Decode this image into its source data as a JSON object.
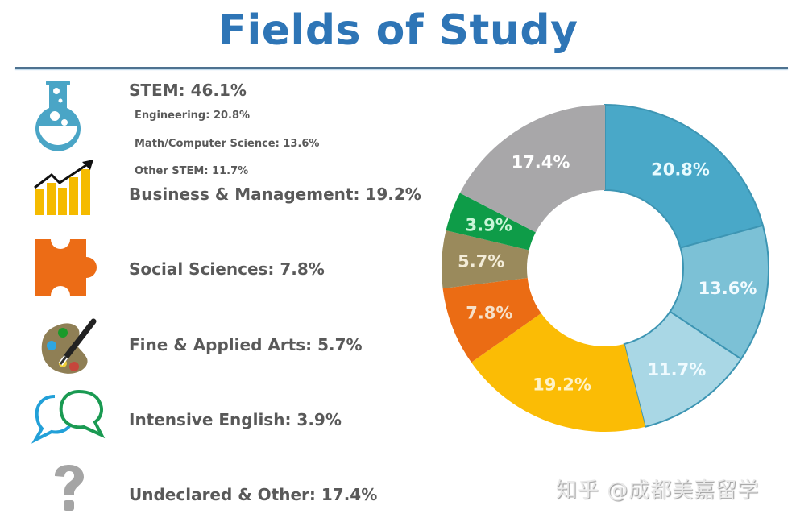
{
  "title": "Fields of Study",
  "legend": {
    "stem": {
      "label": "STEM:  46.1%",
      "icon": "flask-icon",
      "color": "#4aa5c6"
    },
    "stem_sub": [
      {
        "label": "Engineering: 20.8%"
      },
      {
        "label": "Math/Computer Science: 13.6%"
      },
      {
        "label": "Other STEM:  11.7%"
      }
    ],
    "business": {
      "label": "Business & Management:  19.2%",
      "icon": "growth-chart-icon",
      "color": "#f5bb00"
    },
    "social": {
      "label": "Social Sciences:  7.8%",
      "icon": "puzzle-piece-icon",
      "color": "#ec6c16"
    },
    "arts": {
      "label": "Fine & Applied Arts:  5.7%",
      "icon": "paint-palette-icon",
      "color": "#9b8b5e"
    },
    "english": {
      "label": "Intensive English:  3.9%",
      "icon": "speech-bubbles-icon",
      "color": "#17a04a"
    },
    "other": {
      "label": "Undeclared & Other: 17.4%",
      "icon": "question-mark-icon",
      "color": "#a9a8a9"
    }
  },
  "chart_data": {
    "type": "pie",
    "title": "Fields of Study",
    "donut": true,
    "start_angle": "12 o'clock, clockwise",
    "categories": [
      "Engineering",
      "Math/Computer Science",
      "Other STEM",
      "Business & Management",
      "Social Sciences",
      "Fine & Applied Arts",
      "Intensive English",
      "Undeclared & Other"
    ],
    "values": [
      20.8,
      13.6,
      11.7,
      19.2,
      7.8,
      5.7,
      3.9,
      17.4
    ],
    "labels": [
      "20.8%",
      "13.6%",
      "11.7%",
      "19.2%",
      "7.8%",
      "5.7%",
      "3.9%",
      "17.4%"
    ],
    "colors": [
      "#49a8c8",
      "#7cc1d6",
      "#a9d7e5",
      "#fbbc05",
      "#eb6c14",
      "#9a8a5c",
      "#0e9c48",
      "#a8a7a9"
    ],
    "label_colors": [
      "#e8fbff",
      "#f2fbff",
      "#f0fbff",
      "#fff3c8",
      "#f6e0c8",
      "#f3ecd8",
      "#c9f5d7",
      "#ffffff"
    ],
    "groups": [
      {
        "name": "STEM",
        "value": 46.1
      }
    ]
  },
  "watermark": "知乎 @成都美嘉留学"
}
